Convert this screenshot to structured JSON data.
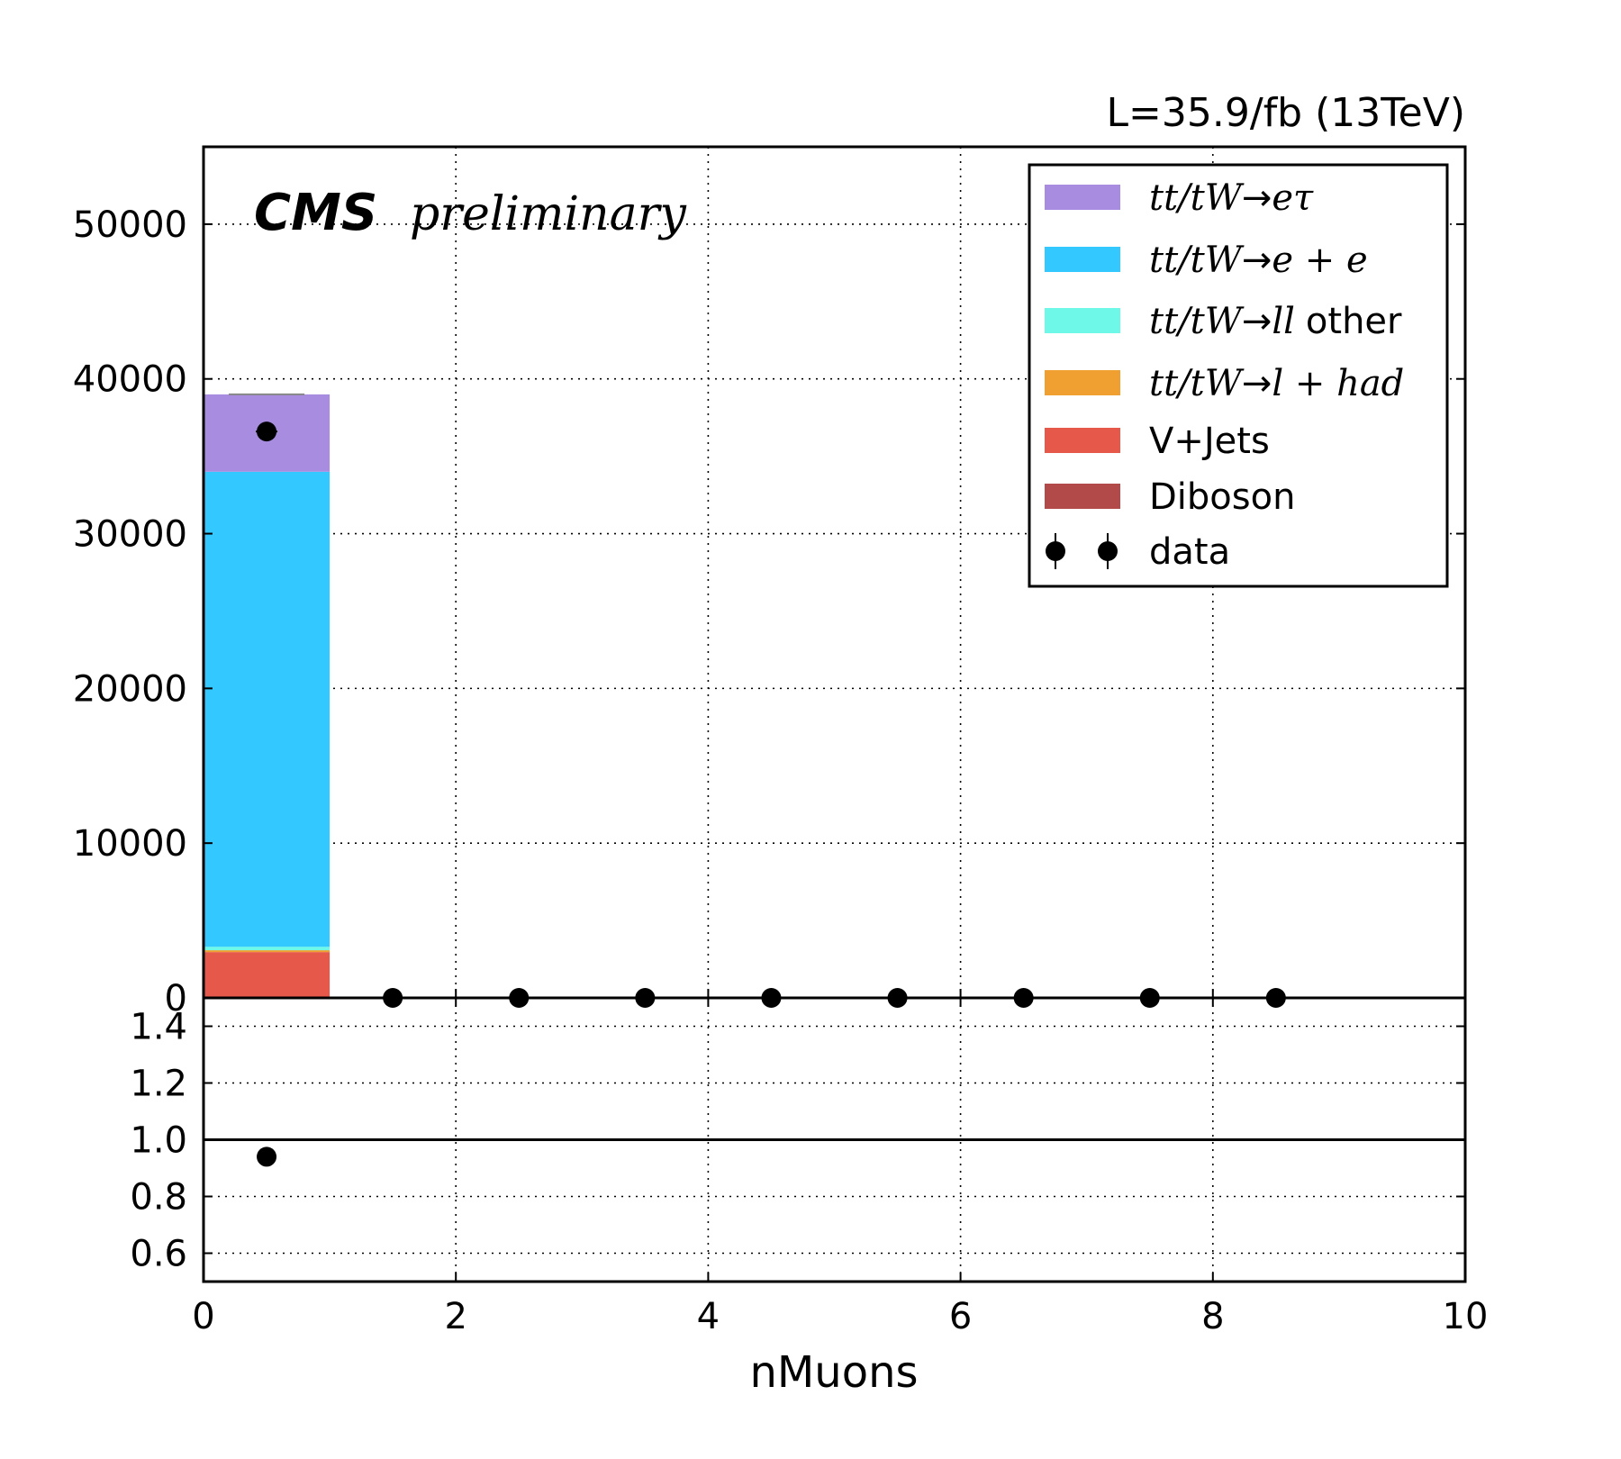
{
  "header": {
    "lumi": "L=35.9/fb (13TeV)",
    "cms": "CMS",
    "preliminary": "preliminary"
  },
  "chart_data": {
    "type": "bar",
    "stacked": true,
    "xlabel": "nMuons",
    "ylabel": "",
    "xlim": [
      0,
      10
    ],
    "ylim": [
      0,
      55000
    ],
    "x_ticks": [
      "0",
      "2",
      "4",
      "6",
      "8",
      "10"
    ],
    "y_ticks": [
      "0",
      "10000",
      "20000",
      "30000",
      "40000",
      "50000"
    ],
    "grid": true,
    "legend_position": "top-right",
    "bin_edges": [
      0,
      1,
      2,
      3,
      4,
      5,
      6,
      7,
      8,
      9,
      10
    ],
    "series": [
      {
        "name": "Diboson",
        "color": "#b24a4a",
        "values": [
          60,
          0,
          0,
          0,
          0,
          0,
          0,
          0,
          0,
          0
        ]
      },
      {
        "name": "V+Jets",
        "color": "#e5584a",
        "values": [
          2900,
          0,
          0,
          0,
          0,
          0,
          0,
          0,
          0,
          0
        ]
      },
      {
        "name": "tt/tW→l+had",
        "color": "#f0a030",
        "values": [
          120,
          0,
          0,
          0,
          0,
          0,
          0,
          0,
          0,
          0
        ]
      },
      {
        "name": "tt/tW→ll other",
        "color": "#6ef8e8",
        "values": [
          220,
          0,
          0,
          0,
          0,
          0,
          0,
          0,
          0,
          0
        ]
      },
      {
        "name": "tt/tW→e+e",
        "color": "#33c8ff",
        "values": [
          30700,
          0,
          0,
          0,
          0,
          0,
          0,
          0,
          0,
          0
        ]
      },
      {
        "name": "tt/tW→eτ",
        "color": "#a78ce0",
        "values": [
          5000,
          0,
          0,
          0,
          0,
          0,
          0,
          0,
          0,
          0
        ]
      }
    ],
    "data": {
      "name": "data",
      "x": [
        0.5,
        1.5,
        2.5,
        3.5,
        4.5,
        5.5,
        6.5,
        7.5,
        8.5
      ],
      "y": [
        36600,
        0,
        0,
        0,
        0,
        0,
        0,
        0,
        0
      ]
    },
    "ratio": {
      "ylim": [
        0.5,
        1.5
      ],
      "y_ticks": [
        "0.6",
        "0.8",
        "1.0",
        "1.2",
        "1.4"
      ],
      "reference": 1.0,
      "x": [
        0.5
      ],
      "y": [
        0.94
      ]
    },
    "legend": [
      {
        "label_main": "tt/tW",
        "label_arrow": "→",
        "label_end": "eτ",
        "label_extra": "",
        "color": "#a78ce0",
        "kind": "patch"
      },
      {
        "label_main": "tt/tW",
        "label_arrow": "→",
        "label_end": "e + e",
        "label_extra": "",
        "color": "#33c8ff",
        "kind": "patch"
      },
      {
        "label_main": "tt/tW",
        "label_arrow": "→",
        "label_end": "ll",
        "label_extra": "other",
        "color": "#6ef8e8",
        "kind": "patch"
      },
      {
        "label_main": "tt/tW",
        "label_arrow": "→",
        "label_end": "l + had",
        "label_extra": "",
        "color": "#f0a030",
        "kind": "patch"
      },
      {
        "label_plain": "V+Jets",
        "color": "#e5584a",
        "kind": "patch"
      },
      {
        "label_plain": "Diboson",
        "color": "#b24a4a",
        "kind": "patch"
      },
      {
        "label_plain": "data",
        "color": "#000000",
        "kind": "marker"
      }
    ]
  }
}
